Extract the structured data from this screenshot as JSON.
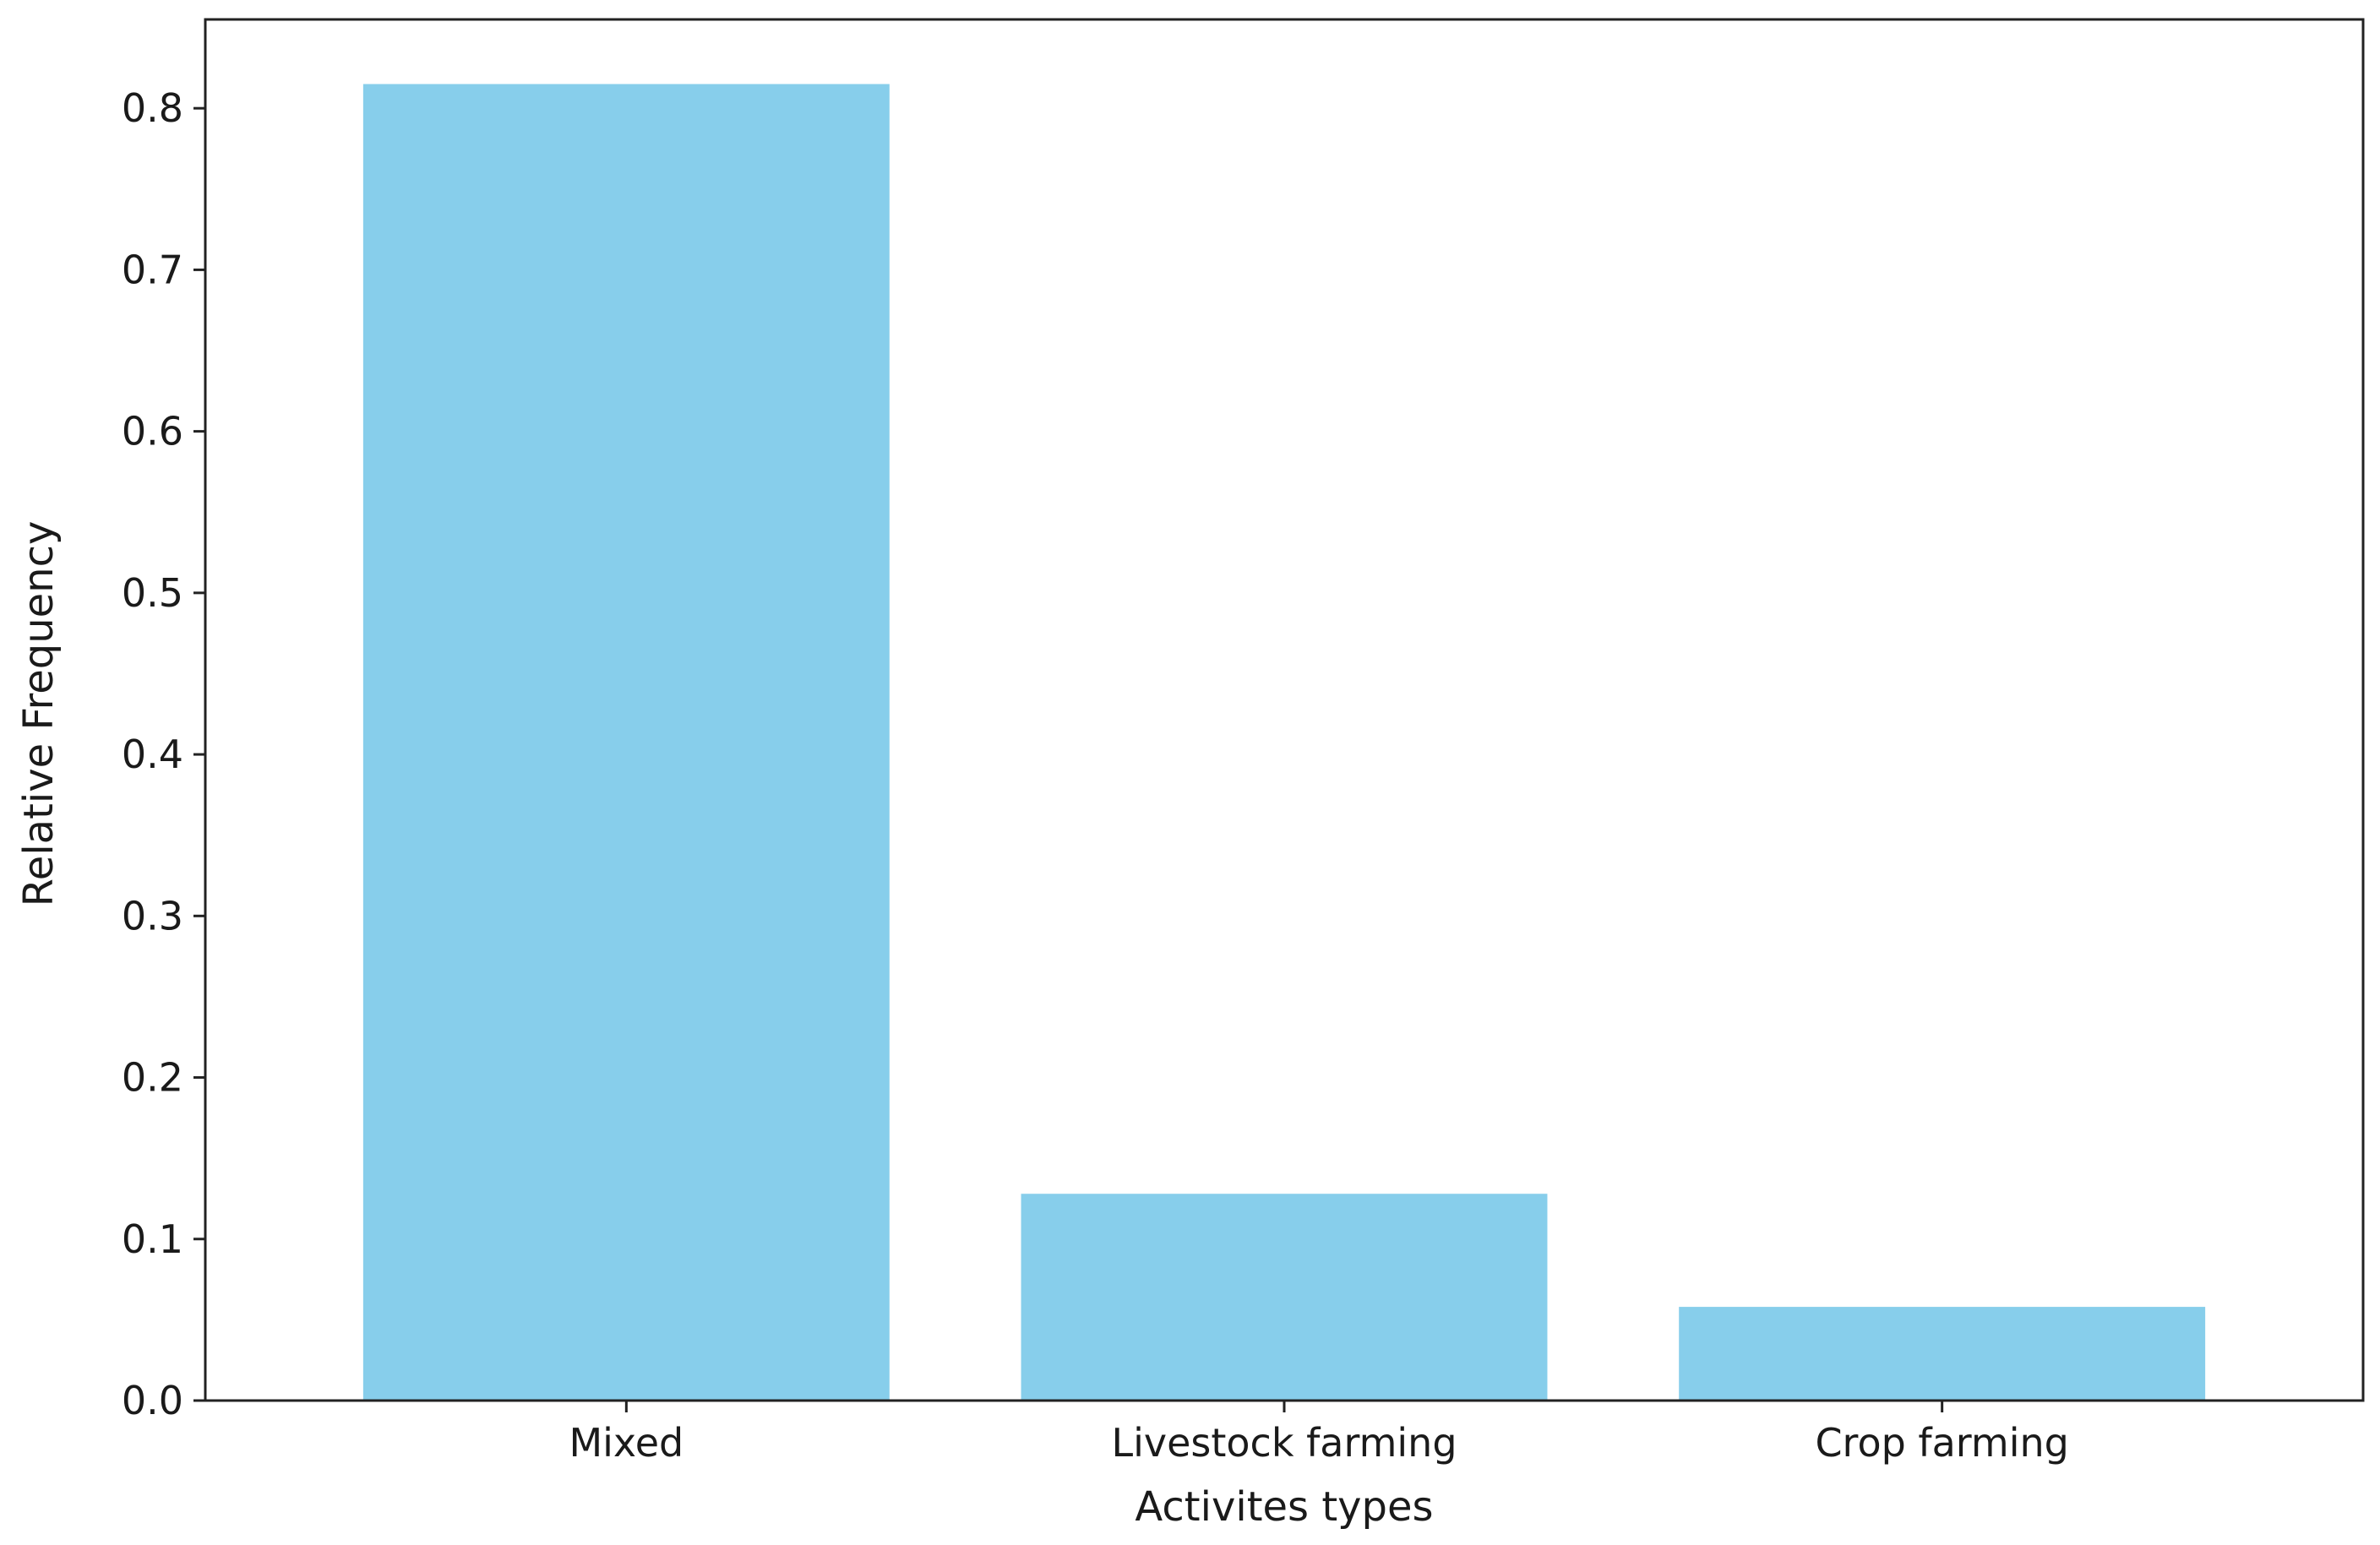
{
  "chart_data": {
    "type": "bar",
    "title": "",
    "xlabel": "Activites types",
    "ylabel": "Relative Frequency",
    "categories": [
      "Mixed",
      "Livestock farming",
      "Crop farming"
    ],
    "values": [
      0.815,
      0.128,
      0.058
    ],
    "ylim": [
      0,
      0.855
    ],
    "yticks": [
      "0.0",
      "0.1",
      "0.2",
      "0.3",
      "0.4",
      "0.5",
      "0.6",
      "0.7",
      "0.8"
    ],
    "grid": false,
    "legend": "none",
    "bar_color": "#87ceeb"
  }
}
